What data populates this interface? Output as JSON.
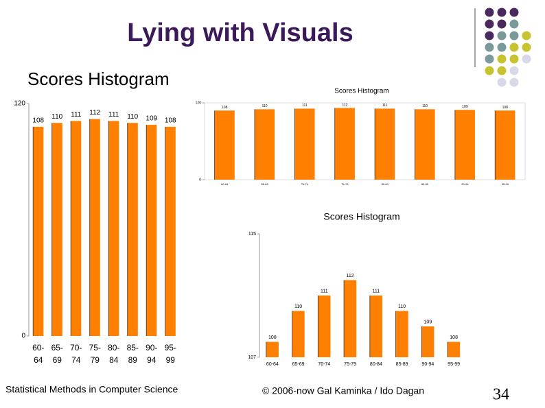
{
  "title": "Lying with Visuals",
  "footer": {
    "left": "Statistical Methods in Computer Science",
    "center": "© 2006-now  Gal Kaminka / Ido Dagan",
    "page_number": "34"
  },
  "chart_data": [
    {
      "type": "bar",
      "title": "Scores Histogram",
      "categories": [
        "60-64",
        "65-69",
        "70-74",
        "75-79",
        "80-84",
        "85-89",
        "90-94",
        "95-99"
      ],
      "values": [
        108,
        110,
        111,
        112,
        111,
        110,
        109,
        108
      ],
      "color": "#ff7f00",
      "ylim": [
        0,
        120
      ],
      "yticks": [
        0,
        120
      ]
    },
    {
      "type": "bar",
      "title": "Scores Histogram",
      "categories": [
        "60-64",
        "65-69",
        "70-74",
        "75-79",
        "80-84",
        "85-89",
        "90-94",
        "95-99"
      ],
      "values": [
        108,
        110,
        111,
        112,
        111,
        110,
        109,
        108
      ],
      "color": "#ff7f00",
      "ylim": [
        0,
        120
      ],
      "yticks": [
        0,
        120
      ]
    },
    {
      "type": "bar",
      "title": "Scores Histogram",
      "categories": [
        "60-64",
        "65-69",
        "70-74",
        "75-79",
        "80-84",
        "85-89",
        "90-94",
        "95-99"
      ],
      "values": [
        108,
        110,
        111,
        112,
        111,
        110,
        109,
        108
      ],
      "color": "#ff7f00",
      "ylim": [
        107,
        115
      ],
      "yticks": [
        107,
        115
      ]
    }
  ]
}
